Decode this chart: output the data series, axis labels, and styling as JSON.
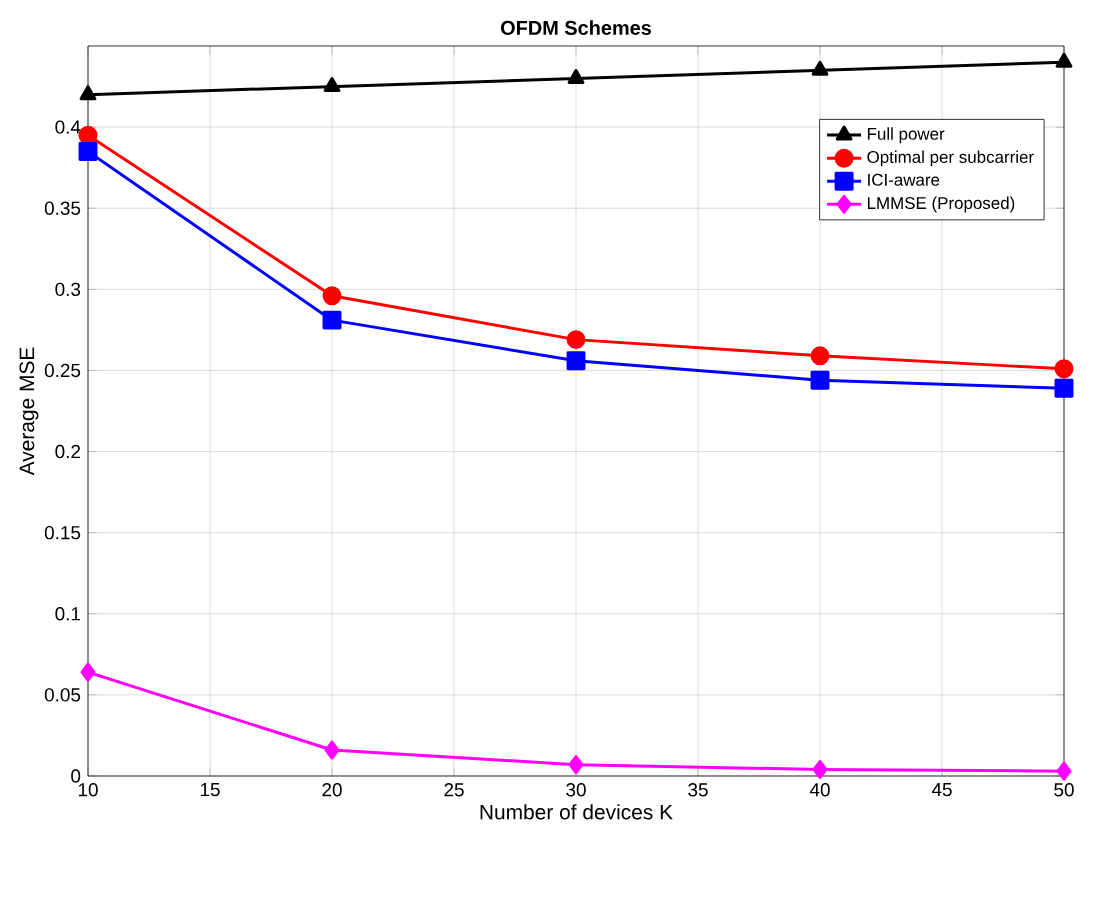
{
  "chart_data": {
    "type": "line",
    "title": "OFDM Schemes",
    "xlabel": "Number of devices K",
    "ylabel": "Average MSE",
    "x": [
      10,
      20,
      30,
      40,
      50
    ],
    "xlim": [
      10,
      50
    ],
    "xticks": [
      10,
      15,
      20,
      25,
      30,
      35,
      40,
      45,
      50
    ],
    "ylim": [
      0,
      0.45
    ],
    "yticks": [
      0,
      0.05,
      0.1,
      0.15,
      0.2,
      0.25,
      0.3,
      0.35,
      0.4
    ],
    "grid": true,
    "legend": "top right",
    "line_style": "solid",
    "series": [
      {
        "name": "Full power",
        "color": "#000000",
        "marker": "triangle",
        "values": [
          0.42,
          0.425,
          0.43,
          0.435,
          0.44
        ]
      },
      {
        "name": "Optimal per subcarrier",
        "color": "#ff0000",
        "marker": "circle",
        "values": [
          0.395,
          0.296,
          0.269,
          0.259,
          0.251
        ]
      },
      {
        "name": "ICI-aware",
        "color": "#0000ff",
        "marker": "square",
        "values": [
          0.385,
          0.281,
          0.256,
          0.244,
          0.239
        ]
      },
      {
        "name": "LMMSE (Proposed)",
        "color": "#ff00ff",
        "marker": "diamond",
        "values": [
          0.064,
          0.016,
          0.007,
          0.004,
          0.003
        ]
      }
    ]
  }
}
